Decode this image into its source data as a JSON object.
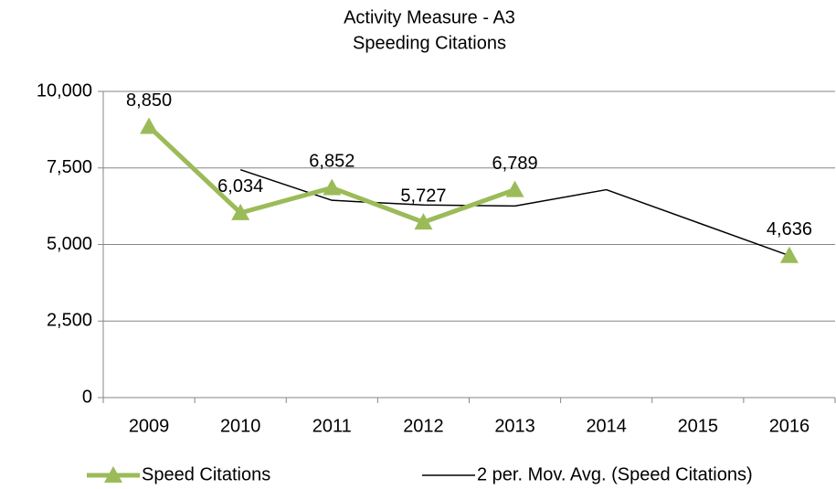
{
  "chart_data": {
    "type": "line",
    "title": [
      "Activity Measure - A3",
      "Speeding Citations"
    ],
    "categories": [
      "2009",
      "2010",
      "2011",
      "2012",
      "2013",
      "2014",
      "2015",
      "2016"
    ],
    "series": [
      {
        "name": "Speed Citations",
        "color": "#9bbb59",
        "marker": "triangle",
        "values": [
          8850,
          6034,
          6852,
          5727,
          6789,
          null,
          null,
          4636
        ],
        "value_labels": [
          "8,850",
          "6,034",
          "6,852",
          "5,727",
          "6,789",
          null,
          null,
          "4,636"
        ]
      },
      {
        "name": "2 per. Mov. Avg. (Speed Citations)",
        "color": "#000000",
        "values": [
          null,
          7442,
          6443,
          6290,
          6258,
          6789,
          5713,
          4636
        ]
      }
    ],
    "ylim": [
      0,
      10000
    ],
    "yticks": [
      0,
      {
        "value": 2500,
        "label": "2,500"
      },
      {
        "value": 5000,
        "label": "5,000"
      },
      {
        "value": 7500,
        "label": "7,500"
      },
      {
        "value": 10000,
        "label": "10,000"
      }
    ],
    "grid": true,
    "legend": "bottom"
  }
}
